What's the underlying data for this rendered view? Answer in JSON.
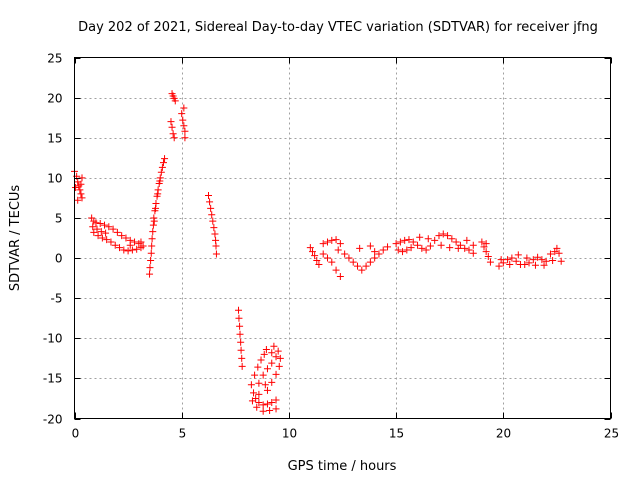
{
  "chart_data": {
    "type": "scatter",
    "title": "Day 202 of 2021, Sidereal Day-to-day VTEC variation (SDTVAR) for receiver jfng",
    "xlabel": "GPS time / hours",
    "ylabel": "SDTVAR / TECUs",
    "xlim": [
      0,
      25
    ],
    "ylim": [
      -20,
      25
    ],
    "xticks": [
      0,
      5,
      10,
      15,
      20,
      25
    ],
    "yticks": [
      -20,
      -15,
      -10,
      -5,
      0,
      5,
      10,
      15,
      20,
      25
    ],
    "grid": true,
    "marker": "+",
    "series_color": "#ff0000",
    "series": [
      {
        "name": "SDTVAR",
        "points": [
          [
            0.0,
            10.8
          ],
          [
            0.1,
            10.2
          ],
          [
            0.15,
            9.5
          ],
          [
            0.2,
            9.0
          ],
          [
            0.25,
            8.5
          ],
          [
            0.3,
            8.0
          ],
          [
            0.35,
            7.5
          ],
          [
            0.05,
            8.8
          ],
          [
            0.3,
            9.2
          ],
          [
            0.35,
            10.0
          ],
          [
            0.15,
            7.2
          ],
          [
            0.8,
            5.0
          ],
          [
            0.9,
            4.6
          ],
          [
            1.0,
            4.4
          ],
          [
            1.2,
            4.3
          ],
          [
            1.4,
            4.1
          ],
          [
            1.6,
            3.9
          ],
          [
            1.8,
            3.6
          ],
          [
            2.0,
            3.2
          ],
          [
            2.2,
            2.8
          ],
          [
            2.4,
            2.5
          ],
          [
            2.6,
            2.2
          ],
          [
            2.8,
            2.0
          ],
          [
            3.0,
            1.8
          ],
          [
            0.9,
            3.2
          ],
          [
            1.1,
            2.8
          ],
          [
            1.3,
            2.5
          ],
          [
            1.5,
            2.3
          ],
          [
            1.7,
            2.0
          ],
          [
            1.9,
            1.6
          ],
          [
            2.1,
            1.3
          ],
          [
            2.3,
            1.0
          ],
          [
            2.5,
            0.9
          ],
          [
            2.7,
            1.0
          ],
          [
            2.9,
            1.1
          ],
          [
            3.1,
            1.3
          ],
          [
            3.2,
            1.5
          ],
          [
            0.85,
            3.9
          ],
          [
            1.05,
            3.6
          ],
          [
            1.25,
            3.3
          ],
          [
            1.45,
            3.1
          ],
          [
            2.6,
            1.6
          ],
          [
            3.1,
            2.0
          ],
          [
            3.5,
            -2.0
          ],
          [
            3.52,
            -1.2
          ],
          [
            3.55,
            -0.3
          ],
          [
            3.58,
            0.6
          ],
          [
            3.6,
            1.5
          ],
          [
            3.62,
            2.4
          ],
          [
            3.65,
            3.3
          ],
          [
            3.68,
            4.1
          ],
          [
            3.7,
            5.0
          ],
          [
            3.75,
            5.9
          ],
          [
            3.8,
            6.8
          ],
          [
            3.85,
            7.7
          ],
          [
            3.9,
            8.5
          ],
          [
            3.95,
            9.3
          ],
          [
            4.0,
            10.0
          ],
          [
            4.05,
            10.7
          ],
          [
            4.1,
            11.3
          ],
          [
            4.15,
            11.9
          ],
          [
            4.2,
            12.4
          ],
          [
            3.72,
            4.6
          ],
          [
            3.78,
            6.2
          ],
          [
            3.88,
            8.0
          ],
          [
            3.98,
            9.6
          ],
          [
            4.55,
            20.5
          ],
          [
            4.6,
            20.2
          ],
          [
            4.65,
            19.9
          ],
          [
            4.7,
            19.6
          ],
          [
            4.5,
            17.0
          ],
          [
            4.55,
            16.3
          ],
          [
            4.6,
            15.5
          ],
          [
            4.65,
            15.0
          ],
          [
            5.0,
            18.0
          ],
          [
            5.05,
            17.2
          ],
          [
            5.1,
            16.5
          ],
          [
            5.15,
            15.8
          ],
          [
            5.1,
            18.7
          ],
          [
            5.15,
            15.0
          ],
          [
            6.25,
            7.8
          ],
          [
            6.3,
            7.0
          ],
          [
            6.35,
            6.2
          ],
          [
            6.4,
            5.4
          ],
          [
            6.45,
            4.6
          ],
          [
            6.5,
            3.8
          ],
          [
            6.55,
            3.0
          ],
          [
            6.58,
            2.2
          ],
          [
            6.6,
            1.5
          ],
          [
            6.62,
            0.5
          ],
          [
            7.65,
            -6.5
          ],
          [
            7.67,
            -7.5
          ],
          [
            7.7,
            -8.5
          ],
          [
            7.72,
            -9.5
          ],
          [
            7.75,
            -10.5
          ],
          [
            7.77,
            -11.5
          ],
          [
            7.8,
            -12.5
          ],
          [
            7.82,
            -13.5
          ],
          [
            8.25,
            -15.8
          ],
          [
            8.35,
            -16.8
          ],
          [
            8.45,
            -17.5
          ],
          [
            8.6,
            -18.0
          ],
          [
            8.8,
            -18.3
          ],
          [
            9.0,
            -18.2
          ],
          [
            9.2,
            -18.0
          ],
          [
            9.4,
            -17.7
          ],
          [
            8.3,
            -17.8
          ],
          [
            8.5,
            -18.6
          ],
          [
            8.8,
            -19.1
          ],
          [
            9.1,
            -19.0
          ],
          [
            9.4,
            -18.8
          ],
          [
            8.4,
            -14.6
          ],
          [
            8.55,
            -13.6
          ],
          [
            8.7,
            -12.7
          ],
          [
            8.85,
            -12.0
          ],
          [
            8.95,
            -11.4
          ],
          [
            8.6,
            -15.6
          ],
          [
            8.8,
            -14.6
          ],
          [
            9.0,
            -13.8
          ],
          [
            9.2,
            -13.1
          ],
          [
            9.4,
            -12.3
          ],
          [
            9.5,
            -11.6
          ],
          [
            9.6,
            -12.5
          ],
          [
            9.55,
            -13.5
          ],
          [
            9.4,
            -14.5
          ],
          [
            9.2,
            -15.5
          ],
          [
            9.0,
            -16.5
          ],
          [
            8.6,
            -17.0
          ],
          [
            8.9,
            -15.8
          ],
          [
            9.3,
            -11.0
          ],
          [
            9.2,
            -11.8
          ],
          [
            11.0,
            1.3
          ],
          [
            11.1,
            0.8
          ],
          [
            11.2,
            0.3
          ],
          [
            11.3,
            -0.3
          ],
          [
            11.4,
            -0.8
          ],
          [
            11.6,
            0.5
          ],
          [
            11.8,
            0.0
          ],
          [
            12.0,
            -0.5
          ],
          [
            12.2,
            -1.5
          ],
          [
            12.4,
            -2.3
          ],
          [
            11.6,
            1.8
          ],
          [
            11.8,
            2.0
          ],
          [
            12.0,
            2.2
          ],
          [
            12.2,
            2.3
          ],
          [
            12.4,
            1.8
          ],
          [
            12.3,
            1.0
          ],
          [
            12.6,
            0.5
          ],
          [
            12.8,
            0.0
          ],
          [
            13.0,
            -0.5
          ],
          [
            13.2,
            -1.0
          ],
          [
            13.4,
            -1.5
          ],
          [
            13.6,
            -1.0
          ],
          [
            13.8,
            -0.5
          ],
          [
            14.0,
            0.0
          ],
          [
            14.2,
            0.5
          ],
          [
            14.4,
            1.0
          ],
          [
            14.6,
            1.4
          ],
          [
            13.8,
            1.5
          ],
          [
            14.0,
            0.8
          ],
          [
            13.3,
            1.2
          ],
          [
            15.0,
            1.8
          ],
          [
            15.2,
            2.0
          ],
          [
            15.4,
            2.2
          ],
          [
            15.6,
            2.3
          ],
          [
            15.8,
            2.0
          ],
          [
            16.0,
            1.6
          ],
          [
            16.2,
            1.2
          ],
          [
            16.4,
            1.0
          ],
          [
            16.6,
            1.5
          ],
          [
            16.8,
            2.2
          ],
          [
            17.0,
            2.8
          ],
          [
            17.2,
            3.0
          ],
          [
            17.4,
            2.8
          ],
          [
            17.6,
            2.4
          ],
          [
            17.8,
            2.0
          ],
          [
            18.0,
            1.6
          ],
          [
            18.2,
            1.2
          ],
          [
            18.4,
            1.0
          ],
          [
            15.1,
            1.0
          ],
          [
            15.3,
            0.8
          ],
          [
            15.5,
            1.0
          ],
          [
            15.7,
            1.3
          ],
          [
            16.1,
            2.6
          ],
          [
            16.5,
            2.4
          ],
          [
            17.1,
            1.6
          ],
          [
            17.5,
            1.3
          ],
          [
            17.9,
            1.2
          ],
          [
            18.3,
            2.2
          ],
          [
            18.6,
            0.6
          ],
          [
            18.6,
            1.6
          ],
          [
            19.0,
            2.0
          ],
          [
            19.1,
            1.4
          ],
          [
            19.2,
            0.8
          ],
          [
            19.3,
            0.2
          ],
          [
            19.4,
            -0.5
          ],
          [
            19.2,
            1.8
          ],
          [
            19.8,
            -1.0
          ],
          [
            20.0,
            -0.6
          ],
          [
            20.2,
            -0.2
          ],
          [
            20.4,
            0.0
          ],
          [
            20.6,
            -0.4
          ],
          [
            20.8,
            -0.8
          ],
          [
            21.0,
            -0.8
          ],
          [
            21.2,
            -0.6
          ],
          [
            21.4,
            -0.2
          ],
          [
            21.6,
            0.1
          ],
          [
            21.8,
            -0.2
          ],
          [
            22.0,
            -0.4
          ],
          [
            22.2,
            0.5
          ],
          [
            22.4,
            0.8
          ],
          [
            22.6,
            0.6
          ],
          [
            22.7,
            -0.4
          ],
          [
            19.9,
            -0.2
          ],
          [
            20.3,
            -0.8
          ],
          [
            20.7,
            0.4
          ],
          [
            21.1,
            0.0
          ],
          [
            21.5,
            -0.9
          ],
          [
            21.9,
            -0.9
          ],
          [
            22.3,
            -0.3
          ],
          [
            22.5,
            1.2
          ]
        ]
      }
    ]
  }
}
